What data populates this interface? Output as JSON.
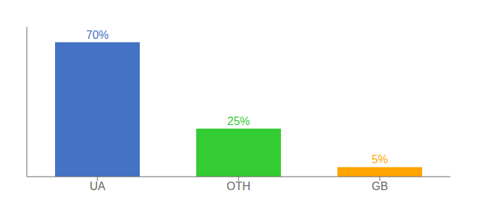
{
  "chart_data": {
    "type": "bar",
    "categories": [
      "UA",
      "OTH",
      "GB"
    ],
    "values": [
      70,
      25,
      5
    ],
    "value_labels": [
      "70%",
      "25%",
      "5%"
    ],
    "colors": [
      "#4472C4",
      "#33CC33",
      "#FFA500"
    ],
    "ylim": [
      0,
      78
    ],
    "data_labels": true,
    "tick_labels": "x",
    "grid": false
  }
}
